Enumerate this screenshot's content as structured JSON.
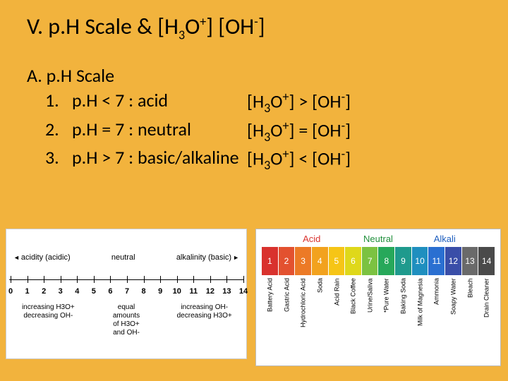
{
  "title_prefix": "V. p.H Scale & [H",
  "title_sub1": "3",
  "title_mid": "O",
  "title_sup1": "+",
  "title_mid2": "] [OH",
  "title_sup2": "-",
  "title_end": "]",
  "section_a": "A.  p.H Scale",
  "items": [
    {
      "num": "1.",
      "text": "p.H < 7 : acid",
      "rel_pre": "[H",
      "rel_s1": "3",
      "rel_m": "O",
      "rel_p1": "+",
      "rel_cmp": "] > [OH",
      "rel_p2": "-",
      "rel_end": "]"
    },
    {
      "num": "2.",
      "text": "p.H = 7 : neutral",
      "rel_pre": "[H",
      "rel_s1": "3",
      "rel_m": "O",
      "rel_p1": "+",
      "rel_cmp": "] = [OH",
      "rel_p2": "-",
      "rel_end": "]"
    },
    {
      "num": "3.",
      "text": "p.H > 7 : basic/alkaline",
      "rel_pre": "[H",
      "rel_s1": "3",
      "rel_m": "O",
      "rel_p1": "+",
      "rel_cmp": "] < [OH",
      "rel_p2": "-",
      "rel_end": "]"
    }
  ],
  "left_diagram": {
    "acidity_label": "acidity (acidic)",
    "neutral_label": "neutral",
    "alkalinity_label": "alkalinity (basic)",
    "ticks": [
      "0",
      "1",
      "2",
      "3",
      "4",
      "5",
      "6",
      "7",
      "8",
      "9",
      "10",
      "11",
      "12",
      "13",
      "14"
    ],
    "bottom_left_1": "increasing H3O+",
    "bottom_left_2": "decreasing OH-",
    "bottom_mid_1": "equal",
    "bottom_mid_2": "amounts",
    "bottom_mid_3": "of H3O+",
    "bottom_mid_4": "and OH-",
    "bottom_right_1": "increasing OH-",
    "bottom_right_2": "decreasing H3O+"
  },
  "right_diagram": {
    "headers": [
      {
        "label": "Acid",
        "color": "#d9322e",
        "flex": 6
      },
      {
        "label": "Neutral",
        "color": "#1f8f3b",
        "flex": 2
      },
      {
        "label": "Alkali",
        "color": "#1f5fbf",
        "flex": 6
      }
    ],
    "blocks": [
      {
        "n": "1",
        "c": "#d9322e"
      },
      {
        "n": "2",
        "c": "#e3512f"
      },
      {
        "n": "3",
        "c": "#ec7a26"
      },
      {
        "n": "4",
        "c": "#f2a21e"
      },
      {
        "n": "5",
        "c": "#f6c516"
      },
      {
        "n": "6",
        "c": "#dfd81a"
      },
      {
        "n": "7",
        "c": "#7cc241"
      },
      {
        "n": "8",
        "c": "#27a85a"
      },
      {
        "n": "9",
        "c": "#1f9a8d"
      },
      {
        "n": "10",
        "c": "#1f8fbf"
      },
      {
        "n": "11",
        "c": "#2a6fd1"
      },
      {
        "n": "12",
        "c": "#3a4ea8"
      },
      {
        "n": "13",
        "c": "#6a6a6a"
      },
      {
        "n": "14",
        "c": "#4a4a4a"
      }
    ],
    "labels": [
      "Battery Acid",
      "Gastric Acid",
      "Hydrochloric Acid",
      "Soda",
      "Acid Rain",
      "Black Coffee",
      "Urine/Saliva",
      "*Pure Water",
      "Baking Soda",
      "Milk of Magnesia",
      "Ammonia",
      "Soapy Water",
      "Bleach",
      "Drain Cleaner"
    ]
  }
}
